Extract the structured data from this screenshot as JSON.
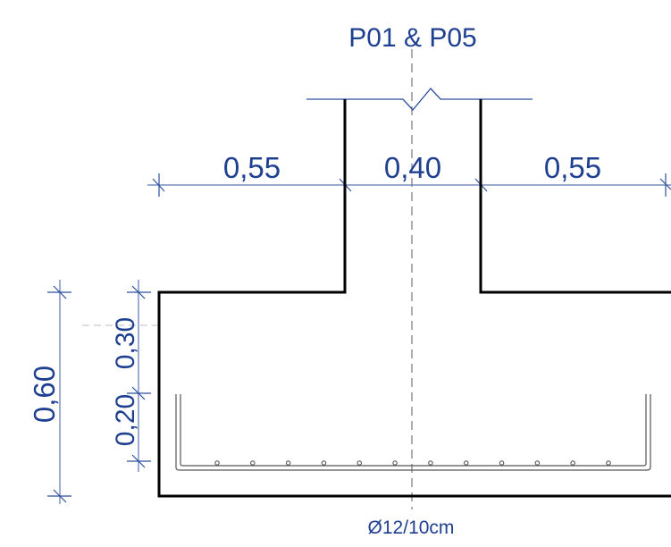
{
  "title": "P01 & P05",
  "dimensions": {
    "horizontal": [
      "0,55",
      "0,40",
      "0,55"
    ],
    "total_height": "0,60",
    "upper_height": "0,30",
    "lower_height": "0,20"
  },
  "reinforcement": {
    "label": "Ø12/10cm",
    "visible_bar_count": 12
  },
  "colors": {
    "dimension": "#1f3f91",
    "outline": "#000000",
    "axis": "#777777"
  }
}
